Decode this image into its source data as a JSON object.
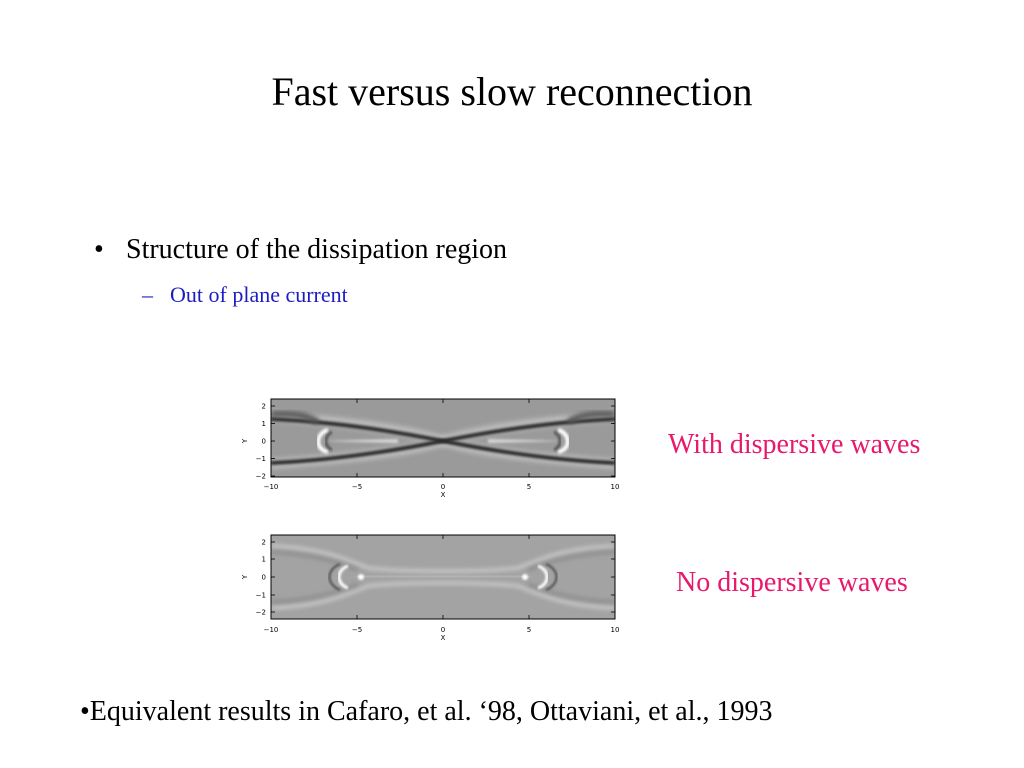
{
  "slide": {
    "title": "Fast versus slow reconnection",
    "bullet": {
      "marker": "•",
      "text": "Structure of the dissipation region"
    },
    "sub_bullet": {
      "marker": "–",
      "text": "Out of plane current"
    },
    "captions": {
      "top": "With dispersive waves",
      "bottom": "No dispersive waves"
    },
    "footnote": "•Equivalent results in Cafaro, et al. ‘98, Ottaviani, et al., 1993",
    "colors": {
      "caption": "#e8186c",
      "sub_bullet": "#1c1cc2",
      "title": "#000000"
    }
  },
  "figures": [
    {
      "id": "with-dispersive",
      "x_ticks": [
        "−10",
        "−5",
        "0",
        "5",
        "10"
      ],
      "y_ticks": [
        "2",
        "1",
        "0",
        "−1",
        "−2"
      ],
      "x_label": "X",
      "y_label": "Y",
      "icon": "x-point-current-sheet"
    },
    {
      "id": "no-dispersive",
      "x_ticks": [
        "−10",
        "−5",
        "0",
        "5",
        "10"
      ],
      "y_ticks": [
        "2",
        "1",
        "0",
        "−1",
        "−2"
      ],
      "x_label": "X",
      "y_label": "Y",
      "icon": "elongated-current-sheet"
    }
  ]
}
